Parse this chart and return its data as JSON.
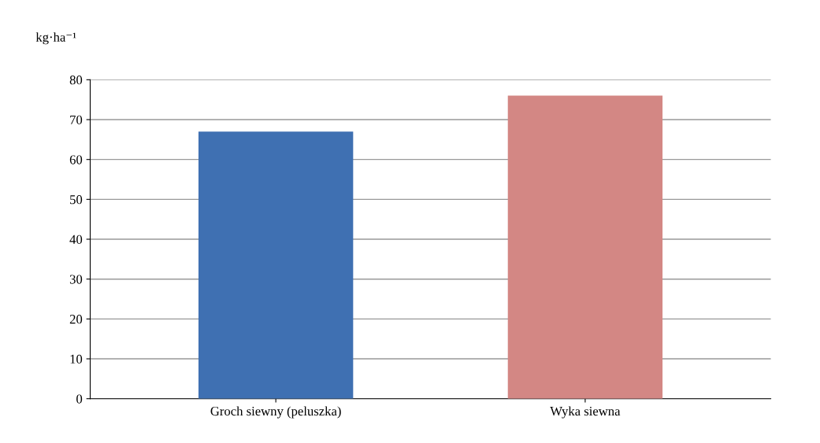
{
  "chart_data": {
    "type": "bar",
    "ylabel": "kg·ha⁻¹",
    "categories": [
      "Groch siewny (peluszka)",
      "Wyka siewna"
    ],
    "values": [
      67,
      76
    ],
    "colors": [
      "#3f70b2",
      "#d38784"
    ],
    "ylim": [
      0,
      80
    ],
    "yticks": [
      0,
      10,
      20,
      30,
      40,
      50,
      60,
      70,
      80
    ],
    "grid": "y",
    "legend": false
  }
}
